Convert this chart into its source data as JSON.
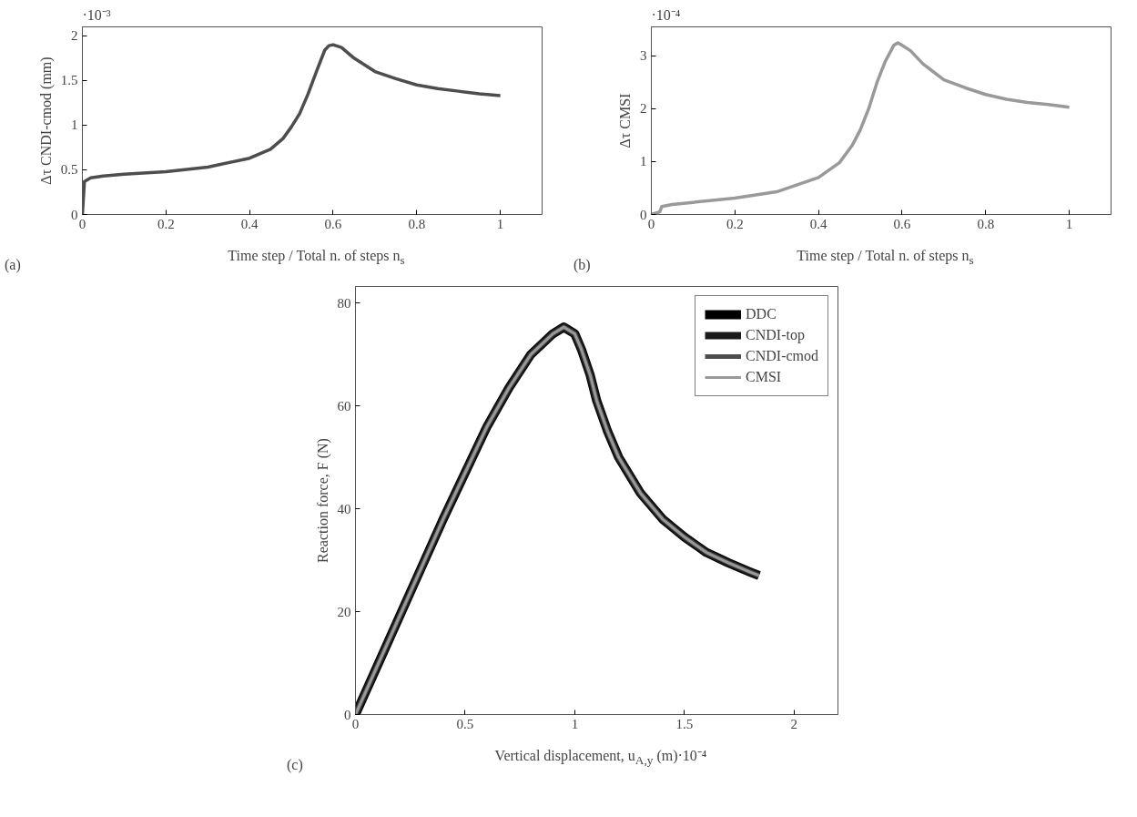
{
  "chart_data": [
    {
      "type": "line",
      "ylabel": "Δτ CNDI-cmod (mm)",
      "xlabel": "Time step / Total n. of steps n$_{s}$",
      "annotations": [
        "·10⁻³",
        "(a)"
      ],
      "x": [
        0,
        0.005,
        0.02,
        0.05,
        0.1,
        0.2,
        0.3,
        0.4,
        0.45,
        0.48,
        0.5,
        0.52,
        0.54,
        0.56,
        0.58,
        0.59,
        0.6,
        0.62,
        0.65,
        0.7,
        0.75,
        0.8,
        0.85,
        0.9,
        0.95,
        1.0
      ],
      "series": [
        {
          "color": "#4d4d4d",
          "values": [
            0,
            0.37,
            0.41,
            0.43,
            0.45,
            0.48,
            0.53,
            0.63,
            0.73,
            0.85,
            0.98,
            1.13,
            1.35,
            1.6,
            1.84,
            1.89,
            1.9,
            1.87,
            1.75,
            1.6,
            1.52,
            1.45,
            1.41,
            1.38,
            1.35,
            1.33
          ]
        }
      ],
      "xlim": [
        0,
        1.1
      ],
      "ylim": [
        0,
        2.1
      ],
      "xticks": [
        0,
        0.2,
        0.4,
        0.6,
        0.8,
        1
      ],
      "yticks": [
        0,
        0.5,
        1,
        1.5,
        2
      ],
      "grid": false,
      "legend": false
    },
    {
      "type": "line",
      "ylabel": "Δτ CMSI",
      "xlabel": "Time step / Total n. of steps n$_{s}$",
      "annotations": [
        "·10⁻⁴",
        "(b)"
      ],
      "x": [
        0,
        0.02,
        0.025,
        0.05,
        0.1,
        0.2,
        0.3,
        0.4,
        0.45,
        0.48,
        0.5,
        0.52,
        0.54,
        0.56,
        0.58,
        0.59,
        0.6,
        0.62,
        0.65,
        0.7,
        0.75,
        0.8,
        0.85,
        0.9,
        0.95,
        1.0
      ],
      "series": [
        {
          "color": "#999999",
          "values": [
            0,
            0.05,
            0.15,
            0.19,
            0.23,
            0.31,
            0.43,
            0.7,
            0.98,
            1.3,
            1.6,
            2.0,
            2.5,
            2.9,
            3.2,
            3.25,
            3.2,
            3.1,
            2.85,
            2.55,
            2.4,
            2.27,
            2.18,
            2.12,
            2.08,
            2.03
          ]
        }
      ],
      "xlim": [
        0,
        1.1
      ],
      "ylim": [
        0,
        3.55
      ],
      "xticks": [
        0,
        0.2,
        0.4,
        0.6,
        0.8,
        1
      ],
      "yticks": [
        0,
        1,
        2,
        3
      ],
      "grid": false,
      "legend": false
    },
    {
      "type": "line",
      "ylabel": "Reaction force, F (N)",
      "xlabel": "Vertical displacement, u$_{A,y}$ (m)·10⁻⁴",
      "annotations": [
        "(c)"
      ],
      "x": [
        0,
        0.1,
        0.2,
        0.3,
        0.4,
        0.5,
        0.6,
        0.7,
        0.8,
        0.9,
        0.95,
        1.0,
        1.03,
        1.07,
        1.1,
        1.15,
        1.2,
        1.3,
        1.4,
        1.5,
        1.6,
        1.7,
        1.8,
        1.84
      ],
      "series": [
        {
          "name": "DDC",
          "color": "#000000",
          "values": [
            0,
            9.5,
            19,
            28.5,
            38,
            47,
            56,
            63.5,
            70,
            74,
            75.3,
            74,
            71,
            66,
            61,
            55,
            50,
            43,
            38,
            34.5,
            31.5,
            29.5,
            27.7,
            27
          ]
        },
        {
          "name": "CNDI-top",
          "color": "#1a1a1a",
          "values": [
            0,
            9.5,
            19,
            28.5,
            38,
            47,
            56,
            63.5,
            70,
            74,
            75.3,
            74,
            71,
            66,
            61,
            55,
            50,
            43,
            38,
            34.5,
            31.5,
            29.5,
            27.7,
            27
          ]
        },
        {
          "name": "CNDI-cmod",
          "color": "#4d4d4d",
          "values": [
            0,
            9.5,
            19,
            28.5,
            38,
            47,
            56,
            63.5,
            70,
            74,
            75.3,
            74,
            71,
            66,
            61,
            55,
            50,
            43,
            38,
            34.5,
            31.5,
            29.5,
            27.7,
            27
          ]
        },
        {
          "name": "CMSI",
          "color": "#999999",
          "values": [
            0,
            9.5,
            19,
            28.5,
            38,
            47,
            56,
            63.5,
            70,
            74,
            75.3,
            74,
            71,
            66,
            61,
            55,
            50,
            43,
            38,
            34.5,
            31.5,
            29.5,
            27.7,
            27
          ]
        }
      ],
      "xlim": [
        0,
        2.2
      ],
      "ylim": [
        0,
        83.2
      ],
      "xticks": [
        0,
        0.5,
        1,
        1.5,
        2
      ],
      "yticks": [
        0,
        20,
        40,
        60,
        80
      ],
      "grid": false,
      "legend": "top right"
    }
  ]
}
